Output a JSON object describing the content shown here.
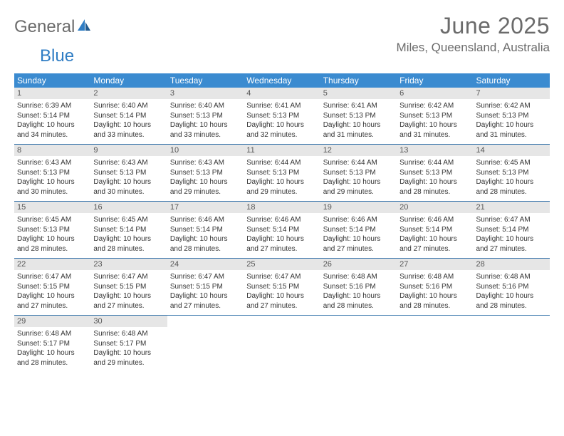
{
  "brand": {
    "part1": "General",
    "part2": "Blue"
  },
  "title": "June 2025",
  "location": "Miles, Queensland, Australia",
  "colors": {
    "header_bar": "#3b8bd0",
    "daynum_bg": "#e6e6e6",
    "week_border": "#2f6fa8",
    "text": "#333333",
    "title_text": "#6b6b6b"
  },
  "day_headers": [
    "Sunday",
    "Monday",
    "Tuesday",
    "Wednesday",
    "Thursday",
    "Friday",
    "Saturday"
  ],
  "weeks": [
    [
      {
        "n": "1",
        "sunrise": "Sunrise: 6:39 AM",
        "sunset": "Sunset: 5:14 PM",
        "day1": "Daylight: 10 hours",
        "day2": "and 34 minutes."
      },
      {
        "n": "2",
        "sunrise": "Sunrise: 6:40 AM",
        "sunset": "Sunset: 5:14 PM",
        "day1": "Daylight: 10 hours",
        "day2": "and 33 minutes."
      },
      {
        "n": "3",
        "sunrise": "Sunrise: 6:40 AM",
        "sunset": "Sunset: 5:13 PM",
        "day1": "Daylight: 10 hours",
        "day2": "and 33 minutes."
      },
      {
        "n": "4",
        "sunrise": "Sunrise: 6:41 AM",
        "sunset": "Sunset: 5:13 PM",
        "day1": "Daylight: 10 hours",
        "day2": "and 32 minutes."
      },
      {
        "n": "5",
        "sunrise": "Sunrise: 6:41 AM",
        "sunset": "Sunset: 5:13 PM",
        "day1": "Daylight: 10 hours",
        "day2": "and 31 minutes."
      },
      {
        "n": "6",
        "sunrise": "Sunrise: 6:42 AM",
        "sunset": "Sunset: 5:13 PM",
        "day1": "Daylight: 10 hours",
        "day2": "and 31 minutes."
      },
      {
        "n": "7",
        "sunrise": "Sunrise: 6:42 AM",
        "sunset": "Sunset: 5:13 PM",
        "day1": "Daylight: 10 hours",
        "day2": "and 31 minutes."
      }
    ],
    [
      {
        "n": "8",
        "sunrise": "Sunrise: 6:43 AM",
        "sunset": "Sunset: 5:13 PM",
        "day1": "Daylight: 10 hours",
        "day2": "and 30 minutes."
      },
      {
        "n": "9",
        "sunrise": "Sunrise: 6:43 AM",
        "sunset": "Sunset: 5:13 PM",
        "day1": "Daylight: 10 hours",
        "day2": "and 30 minutes."
      },
      {
        "n": "10",
        "sunrise": "Sunrise: 6:43 AM",
        "sunset": "Sunset: 5:13 PM",
        "day1": "Daylight: 10 hours",
        "day2": "and 29 minutes."
      },
      {
        "n": "11",
        "sunrise": "Sunrise: 6:44 AM",
        "sunset": "Sunset: 5:13 PM",
        "day1": "Daylight: 10 hours",
        "day2": "and 29 minutes."
      },
      {
        "n": "12",
        "sunrise": "Sunrise: 6:44 AM",
        "sunset": "Sunset: 5:13 PM",
        "day1": "Daylight: 10 hours",
        "day2": "and 29 minutes."
      },
      {
        "n": "13",
        "sunrise": "Sunrise: 6:44 AM",
        "sunset": "Sunset: 5:13 PM",
        "day1": "Daylight: 10 hours",
        "day2": "and 28 minutes."
      },
      {
        "n": "14",
        "sunrise": "Sunrise: 6:45 AM",
        "sunset": "Sunset: 5:13 PM",
        "day1": "Daylight: 10 hours",
        "day2": "and 28 minutes."
      }
    ],
    [
      {
        "n": "15",
        "sunrise": "Sunrise: 6:45 AM",
        "sunset": "Sunset: 5:13 PM",
        "day1": "Daylight: 10 hours",
        "day2": "and 28 minutes."
      },
      {
        "n": "16",
        "sunrise": "Sunrise: 6:45 AM",
        "sunset": "Sunset: 5:14 PM",
        "day1": "Daylight: 10 hours",
        "day2": "and 28 minutes."
      },
      {
        "n": "17",
        "sunrise": "Sunrise: 6:46 AM",
        "sunset": "Sunset: 5:14 PM",
        "day1": "Daylight: 10 hours",
        "day2": "and 28 minutes."
      },
      {
        "n": "18",
        "sunrise": "Sunrise: 6:46 AM",
        "sunset": "Sunset: 5:14 PM",
        "day1": "Daylight: 10 hours",
        "day2": "and 27 minutes."
      },
      {
        "n": "19",
        "sunrise": "Sunrise: 6:46 AM",
        "sunset": "Sunset: 5:14 PM",
        "day1": "Daylight: 10 hours",
        "day2": "and 27 minutes."
      },
      {
        "n": "20",
        "sunrise": "Sunrise: 6:46 AM",
        "sunset": "Sunset: 5:14 PM",
        "day1": "Daylight: 10 hours",
        "day2": "and 27 minutes."
      },
      {
        "n": "21",
        "sunrise": "Sunrise: 6:47 AM",
        "sunset": "Sunset: 5:14 PM",
        "day1": "Daylight: 10 hours",
        "day2": "and 27 minutes."
      }
    ],
    [
      {
        "n": "22",
        "sunrise": "Sunrise: 6:47 AM",
        "sunset": "Sunset: 5:15 PM",
        "day1": "Daylight: 10 hours",
        "day2": "and 27 minutes."
      },
      {
        "n": "23",
        "sunrise": "Sunrise: 6:47 AM",
        "sunset": "Sunset: 5:15 PM",
        "day1": "Daylight: 10 hours",
        "day2": "and 27 minutes."
      },
      {
        "n": "24",
        "sunrise": "Sunrise: 6:47 AM",
        "sunset": "Sunset: 5:15 PM",
        "day1": "Daylight: 10 hours",
        "day2": "and 27 minutes."
      },
      {
        "n": "25",
        "sunrise": "Sunrise: 6:47 AM",
        "sunset": "Sunset: 5:15 PM",
        "day1": "Daylight: 10 hours",
        "day2": "and 27 minutes."
      },
      {
        "n": "26",
        "sunrise": "Sunrise: 6:48 AM",
        "sunset": "Sunset: 5:16 PM",
        "day1": "Daylight: 10 hours",
        "day2": "and 28 minutes."
      },
      {
        "n": "27",
        "sunrise": "Sunrise: 6:48 AM",
        "sunset": "Sunset: 5:16 PM",
        "day1": "Daylight: 10 hours",
        "day2": "and 28 minutes."
      },
      {
        "n": "28",
        "sunrise": "Sunrise: 6:48 AM",
        "sunset": "Sunset: 5:16 PM",
        "day1": "Daylight: 10 hours",
        "day2": "and 28 minutes."
      }
    ],
    [
      {
        "n": "29",
        "sunrise": "Sunrise: 6:48 AM",
        "sunset": "Sunset: 5:17 PM",
        "day1": "Daylight: 10 hours",
        "day2": "and 28 minutes."
      },
      {
        "n": "30",
        "sunrise": "Sunrise: 6:48 AM",
        "sunset": "Sunset: 5:17 PM",
        "day1": "Daylight: 10 hours",
        "day2": "and 29 minutes."
      },
      null,
      null,
      null,
      null,
      null
    ]
  ]
}
